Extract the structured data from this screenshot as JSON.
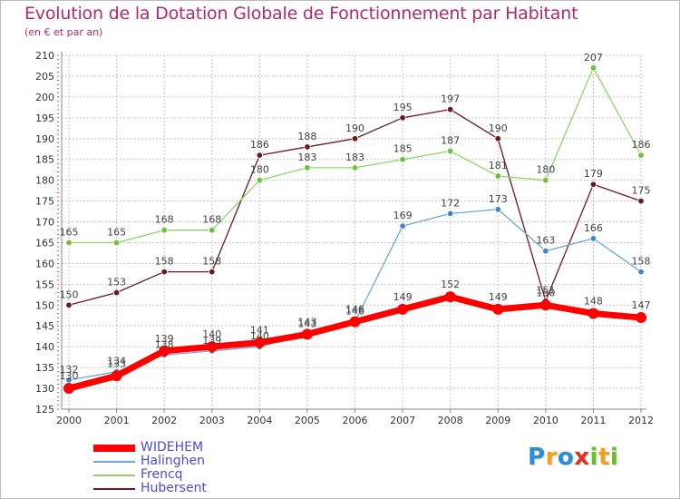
{
  "header": {
    "title": "Evolution de la Dotation Globale de Fonctionnement par Habitant",
    "subtitle": "(en € et par an)"
  },
  "colors": {
    "title": "#b22a6e",
    "grid": "#c6c6c6",
    "axis": "#888888",
    "legend_text": "#4e4cd8"
  },
  "chart_data": {
    "type": "line",
    "title": "Evolution de la Dotation Globale de Fonctionnement par Habitant",
    "subtitle": "(en € et par an)",
    "xlabel": "",
    "ylabel": "",
    "categories": [
      "2000",
      "2001",
      "2002",
      "2003",
      "2004",
      "2005",
      "2006",
      "2007",
      "2008",
      "2009",
      "2010",
      "2011",
      "2012"
    ],
    "ylim": [
      125,
      210
    ],
    "ytick_step": 5,
    "grid": true,
    "series": [
      {
        "name": "Hubersent",
        "color": "#6b1a22",
        "point_color": "#6b1a22",
        "highlight": false,
        "values": [
          150,
          153,
          158,
          158,
          186,
          188,
          190,
          195,
          197,
          190,
          151,
          179,
          175
        ],
        "labels": [
          "150",
          "153",
          "158",
          "158",
          "186",
          "188",
          "190",
          "195",
          "197",
          "190",
          "151",
          "179",
          "175"
        ]
      },
      {
        "name": "Frencq",
        "color": "#8fd46a",
        "point_color": "#6cc23a",
        "highlight": false,
        "values": [
          165,
          165,
          168,
          168,
          180,
          183,
          183,
          185,
          187,
          181,
          180,
          207,
          186
        ],
        "labels": [
          "165",
          "165",
          "168",
          "168",
          "180",
          "183",
          "183",
          "185",
          "187",
          "181",
          "180",
          "207",
          "186"
        ]
      },
      {
        "name": "Halinghen",
        "color": "#6ea6d6",
        "point_color": "#3a87cf",
        "highlight": false,
        "values": [
          132,
          134,
          138,
          139,
          140,
          143,
          146,
          169,
          172,
          173,
          163,
          166,
          158
        ],
        "labels": [
          "132",
          "134",
          "138",
          "139",
          "140",
          "143",
          "146",
          "169",
          "172",
          "173",
          "163",
          "166",
          "158"
        ]
      },
      {
        "name": "WIDEHEM",
        "color": "#ff0000",
        "point_color": "#ff0000",
        "highlight": true,
        "values": [
          130,
          133,
          139,
          140,
          141,
          143,
          146,
          149,
          152,
          149,
          150,
          148,
          147
        ],
        "labels": [
          "130",
          "133",
          "139",
          "140",
          "141",
          "143",
          "146",
          "149",
          "152",
          "149",
          "150",
          "148",
          "147"
        ]
      }
    ]
  },
  "legend": {
    "items": [
      {
        "label": "WIDEHEM",
        "color": "#ff0000",
        "thick": true
      },
      {
        "label": "Halinghen",
        "color": "#6ea6d6",
        "thick": false
      },
      {
        "label": "Frencq",
        "color": "#8fd46a",
        "thick": false
      },
      {
        "label": "Hubersent",
        "color": "#6b1a22",
        "thick": false
      }
    ]
  },
  "logo": {
    "letters": [
      {
        "ch": "P",
        "color": "#2b8fd8"
      },
      {
        "ch": "r",
        "color": "#f0a21a"
      },
      {
        "ch": "o",
        "color": "#2b8fd8"
      },
      {
        "ch": "x",
        "color": "#e0301e"
      },
      {
        "ch": "i",
        "color": "#6cbf2a"
      },
      {
        "ch": "t",
        "color": "#f0a21a"
      },
      {
        "ch": "i",
        "color": "#6cbf2a"
      }
    ]
  }
}
